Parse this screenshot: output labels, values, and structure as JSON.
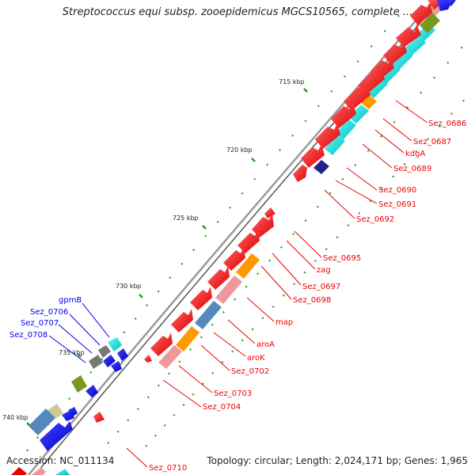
{
  "title": "Streptococcus equi subsp. zooepidemicus MGCS10565, complete ...",
  "accession": "Accession: NC_011134",
  "topology": "Topology: circular; Length: 2,024,171 bp; Genes: 1,965",
  "colors": {
    "backbone": "#888888",
    "gene_red": "#ee0000",
    "cyan": "#00cccc",
    "orange": "#ff9900",
    "pink": "#ee9999",
    "steel": "#5588bb",
    "navy": "#222288",
    "olive": "#779922",
    "grey": "#777777",
    "blue": "#0000ee",
    "khaki": "#cccc99",
    "tick_green": "#229922"
  },
  "ticks": [
    {
      "label": "715 kbp"
    },
    {
      "label": "720 kbp"
    },
    {
      "label": "725 kbp"
    },
    {
      "label": "730 kbp"
    },
    {
      "label": "735 kbp"
    },
    {
      "label": "740 kbp"
    }
  ],
  "red_labels": [
    {
      "text": "Sez_0686"
    },
    {
      "text": "Sez_0687"
    },
    {
      "text": "kdgA"
    },
    {
      "text": "Sez_0689"
    },
    {
      "text": "Sez_0690"
    },
    {
      "text": "Sez_0691"
    },
    {
      "text": "Sez_0692"
    },
    {
      "text": "Sez_0695"
    },
    {
      "text": "zag"
    },
    {
      "text": "Sez_0697"
    },
    {
      "text": "Sez_0698"
    },
    {
      "text": "map"
    },
    {
      "text": "aroA"
    },
    {
      "text": "aroK"
    },
    {
      "text": "Sez_0702"
    },
    {
      "text": "Sez_0703"
    },
    {
      "text": "Sez_0704"
    },
    {
      "text": "Sez_0710"
    }
  ],
  "blue_labels": [
    {
      "text": "gpmB"
    },
    {
      "text": "Sez_0706"
    },
    {
      "text": "Sez_0707"
    },
    {
      "text": "Sez_0708"
    }
  ]
}
